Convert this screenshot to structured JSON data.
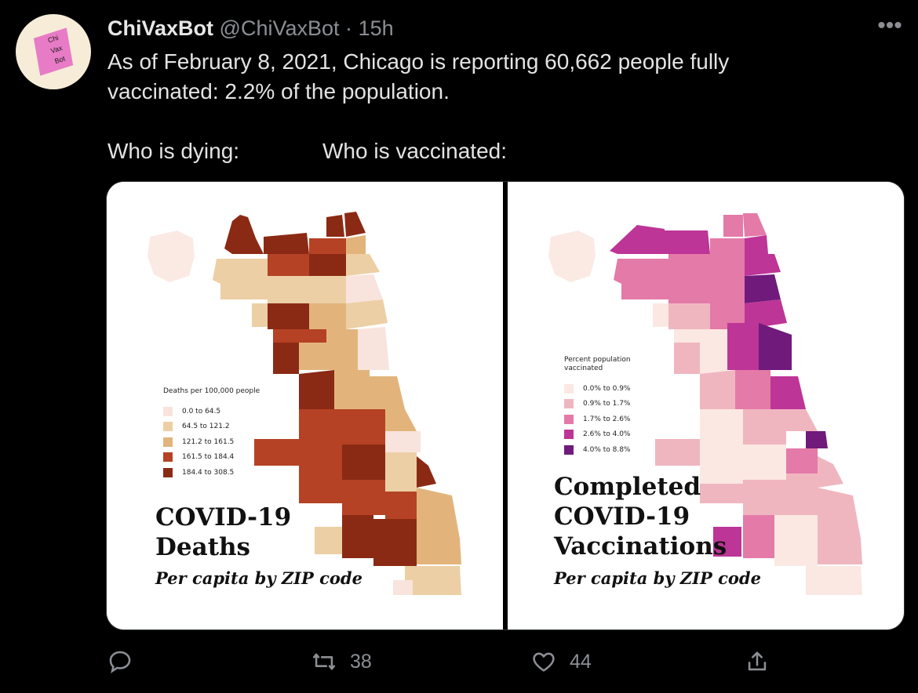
{
  "user": {
    "name": "ChiVaxBot",
    "handle": "@ChiVaxBot",
    "separator": "·",
    "time": "15h",
    "avatar_text": [
      "Chi",
      "Vax",
      "Bot"
    ]
  },
  "tweet": {
    "line1": "As of February 8, 2021, Chicago is reporting 60,662 people fully",
    "line2": "vaccinated: 2.2% of the population.",
    "col1": "Who is dying:",
    "col2": "Who is vaccinated:"
  },
  "images": {
    "deaths": {
      "legend_title": "Deaths per 100,000 people",
      "legend": [
        {
          "label": "0.0 to 64.5",
          "color": "#f8e4dc"
        },
        {
          "label": "64.5 to 121.2",
          "color": "#eccfa4"
        },
        {
          "label": "121.2 to 161.5",
          "color": "#e2b47c"
        },
        {
          "label": "161.5 to 184.4",
          "color": "#b54224"
        },
        {
          "label": "184.4 to 308.5",
          "color": "#8b2a14"
        }
      ],
      "title_line1": "COVID-19",
      "title_line2": "Deaths",
      "subtitle": "Per capita by ZIP code"
    },
    "vaccinations": {
      "legend_title_line1": "Percent population",
      "legend_title_line2": "vaccinated",
      "legend": [
        {
          "label": "0.0% to 0.9%",
          "color": "#fbe8e2"
        },
        {
          "label": "0.9% to 1.7%",
          "color": "#f0b6c0"
        },
        {
          "label": "1.7% to 2.6%",
          "color": "#e47aa8"
        },
        {
          "label": "2.6% to 4.0%",
          "color": "#bd3596"
        },
        {
          "label": "4.0% to 8.8%",
          "color": "#701a7c"
        }
      ],
      "title_line1": "Completed",
      "title_line2": "COVID-19",
      "title_line3": "Vaccinations",
      "subtitle": "Per capita by ZIP code"
    }
  },
  "actions": {
    "reply_icon": "reply-icon",
    "retweet_icon": "retweet-icon",
    "retweet_count": "38",
    "like_icon": "heart-icon",
    "like_count": "44",
    "share_icon": "share-icon",
    "more_icon": "more-icon"
  }
}
